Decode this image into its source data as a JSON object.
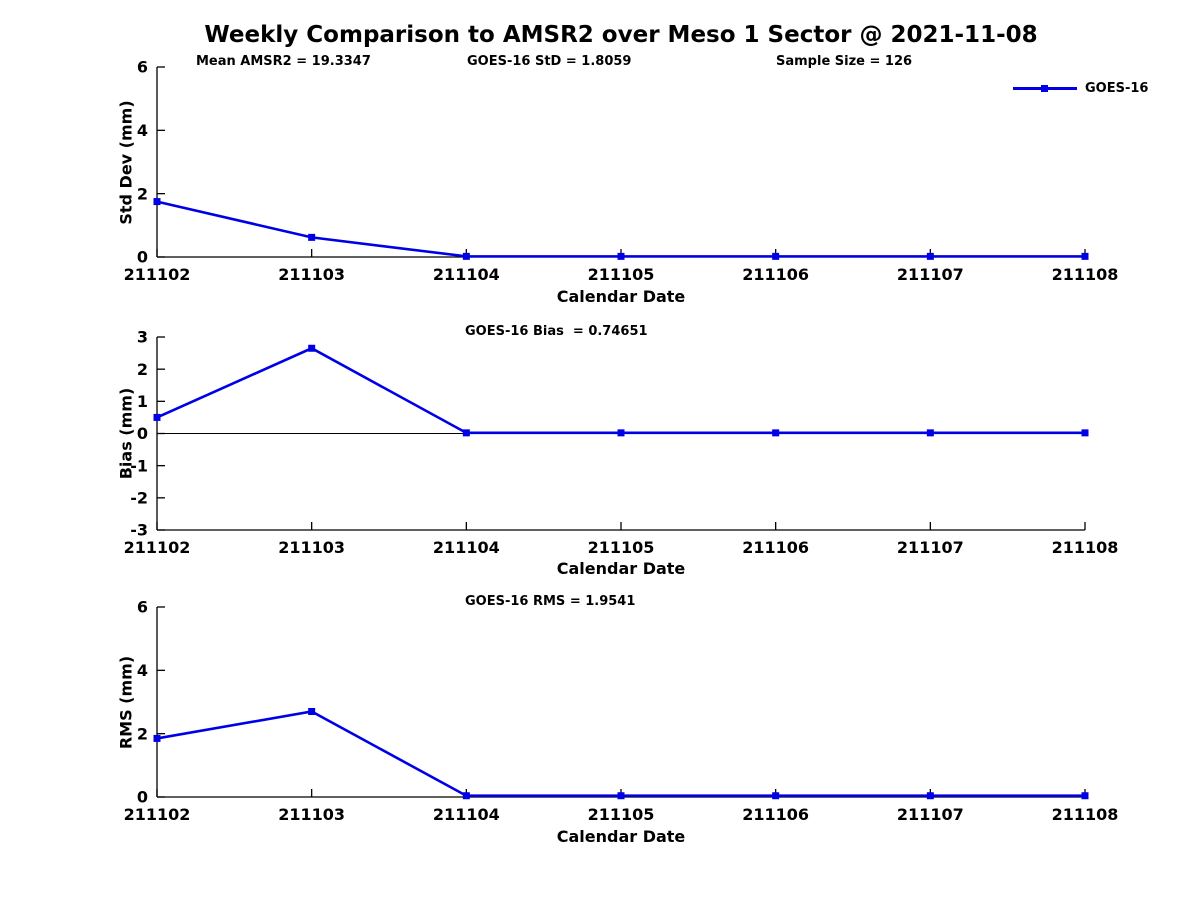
{
  "title": "Weekly Comparison to AMSR2 over Meso 1 Sector @ 2021-11-08",
  "legend": {
    "label": "GOES-16",
    "color": "#0000E6",
    "position": "top-right"
  },
  "chart_data": [
    {
      "type": "line",
      "title": "Std Dev subplot",
      "categories": [
        "211102",
        "211103",
        "211104",
        "211105",
        "211106",
        "211107",
        "211108"
      ],
      "series": [
        {
          "name": "GOES-16",
          "color": "#0000E6",
          "marker": "square",
          "values": [
            1.75,
            0.62,
            0.02,
            0.02,
            0.02,
            0.02,
            0.02
          ]
        }
      ],
      "xlabel": "Calendar Date",
      "ylabel": "Std Dev (mm)",
      "ylim": [
        0,
        6
      ],
      "yticks": [
        0,
        2,
        4,
        6
      ],
      "grid": false,
      "zero_line": false,
      "annotations": [
        "Mean AMSR2 = 19.3347",
        "GOES-16 StD = 1.8059",
        "Sample Size = 126"
      ]
    },
    {
      "type": "line",
      "title": "Bias subplot",
      "categories": [
        "211102",
        "211103",
        "211104",
        "211105",
        "211106",
        "211107",
        "211108"
      ],
      "series": [
        {
          "name": "GOES-16",
          "color": "#0000E6",
          "marker": "square",
          "values": [
            0.5,
            2.65,
            0.02,
            0.02,
            0.02,
            0.02,
            0.02
          ]
        }
      ],
      "xlabel": "Calendar Date",
      "ylabel": "Bias (mm)",
      "ylim": [
        -3,
        3
      ],
      "yticks": [
        -3,
        -2,
        -1,
        0,
        1,
        2,
        3
      ],
      "grid": false,
      "zero_line": true,
      "annotations": [
        "GOES-16 Bias  = 0.74651"
      ]
    },
    {
      "type": "line",
      "title": "RMS subplot",
      "categories": [
        "211102",
        "211103",
        "211104",
        "211105",
        "211106",
        "211107",
        "211108"
      ],
      "series": [
        {
          "name": "GOES-16",
          "color": "#0000E6",
          "marker": "square",
          "values": [
            1.85,
            2.7,
            0.04,
            0.04,
            0.04,
            0.04,
            0.04
          ]
        }
      ],
      "xlabel": "Calendar Date",
      "ylabel": "RMS (mm)",
      "ylim": [
        0,
        6
      ],
      "yticks": [
        0,
        2,
        4,
        6
      ],
      "grid": false,
      "zero_line": false,
      "annotations": [
        "GOES-16 RMS = 1.9541"
      ]
    }
  ]
}
